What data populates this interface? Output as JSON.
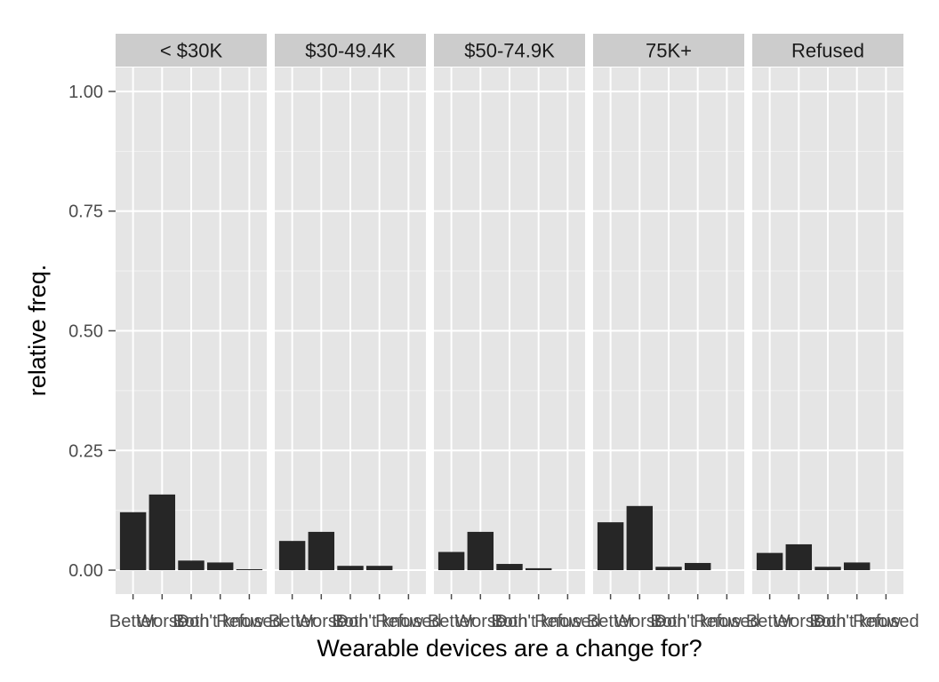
{
  "chart_data": {
    "type": "bar",
    "facet_by": "income",
    "panels": [
      "< $30K",
      "$30-49.4K",
      "$50-74.9K",
      "75K+",
      "Refused"
    ],
    "categories": [
      "Better",
      "Worse",
      "Both",
      "Don't know",
      "Refused"
    ],
    "tick_labels": [
      "Better",
      "Worse",
      "Both",
      "Don't know",
      "Refused"
    ],
    "values": [
      [
        0.121,
        0.158,
        0.02,
        0.016,
        0.002
      ],
      [
        0.061,
        0.08,
        0.009,
        0.009,
        0.0
      ],
      [
        0.038,
        0.08,
        0.013,
        0.004,
        0.0
      ],
      [
        0.1,
        0.134,
        0.007,
        0.015,
        0.0
      ],
      [
        0.036,
        0.054,
        0.007,
        0.016,
        0.0
      ]
    ],
    "y_ticks": [
      0.0,
      0.25,
      0.5,
      0.75,
      1.0
    ],
    "y_tick_labels": [
      "0.00",
      "0.25",
      "0.50",
      "0.75",
      "1.00"
    ],
    "ylim": [
      -0.05,
      1.05
    ],
    "xlabel": "Wearable devices are a change for?",
    "ylabel": "relative freq.",
    "grid": true,
    "legend": "none",
    "colors": {
      "bar": "#262626",
      "panel_bg": "#e5e5e5",
      "grid_major": "#ffffff",
      "grid_minor": "#f2f2f2",
      "strip_bg": "#cccccc",
      "tick": "#4d4d4d"
    }
  }
}
